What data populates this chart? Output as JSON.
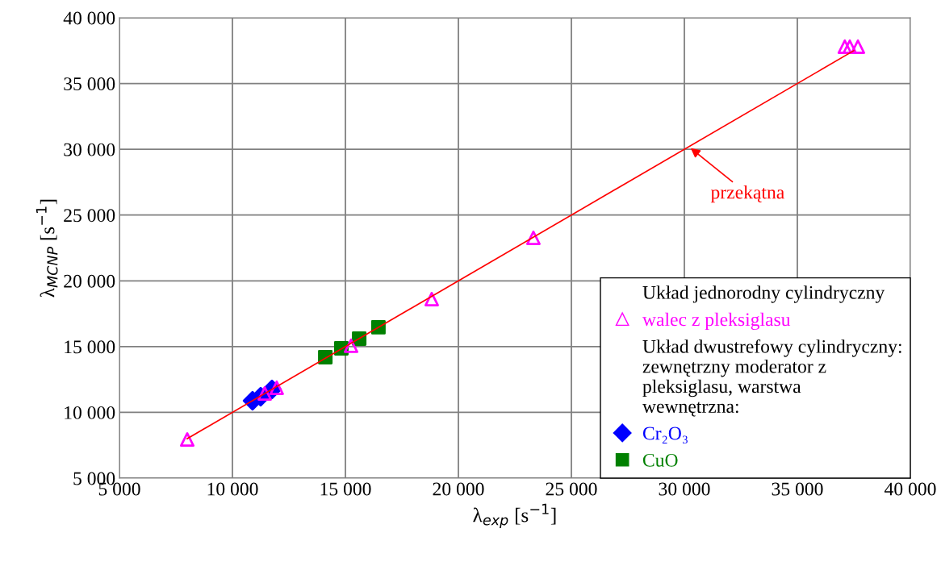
{
  "chart_data": {
    "type": "scatter",
    "xlabel": "λ$_{exp}$ [s$^{−1}$]",
    "ylabel": "λ$_{MCNP}$ [s$^{−1}$]",
    "xlim": [
      5000,
      40000
    ],
    "ylim": [
      5000,
      40000
    ],
    "xticks": [
      {
        "value": 5000,
        "label": "5 000"
      },
      {
        "value": 10000,
        "label": "10 000"
      },
      {
        "value": 15000,
        "label": "15 000"
      },
      {
        "value": 20000,
        "label": "20 000"
      },
      {
        "value": 25000,
        "label": "25 000"
      },
      {
        "value": 30000,
        "label": "30 000"
      },
      {
        "value": 35000,
        "label": "35 000"
      },
      {
        "value": 40000,
        "label": "40 000"
      }
    ],
    "yticks": [
      {
        "value": 5000,
        "label": "5 000"
      },
      {
        "value": 10000,
        "label": "10 000"
      },
      {
        "value": 15000,
        "label": "15 000"
      },
      {
        "value": 20000,
        "label": "20 000"
      },
      {
        "value": 25000,
        "label": "25 000"
      },
      {
        "value": 30000,
        "label": "30 000"
      },
      {
        "value": 35000,
        "label": "35 000"
      },
      {
        "value": 40000,
        "label": "40 000"
      }
    ],
    "grid": true,
    "legend": "bottom right",
    "series": [
      {
        "name": "walec z pleksiglasu",
        "color": "#ff00ff",
        "marker": "triangle",
        "x": [
          8000,
          11430,
          11960,
          15250,
          18820,
          23320,
          37100,
          37320,
          37680
        ],
        "values": [
          7940,
          11440,
          11870,
          15060,
          18610,
          23270,
          37800,
          37800,
          37800
        ]
      },
      {
        "name": "Cr₂O₃",
        "color": "#0000ff",
        "marker": "diamond",
        "x": [
          10890,
          11250,
          11750
        ],
        "values": [
          10890,
          11190,
          11740
        ]
      },
      {
        "name": "CuO",
        "color": "#008000",
        "marker": "square",
        "x": [
          14110,
          14820,
          15610,
          16460
        ],
        "values": [
          14200,
          14870,
          15610,
          16470
        ]
      },
      {
        "type": "line",
        "color": "#ff0000",
        "marker": "none",
        "x": [
          8000,
          37500
        ],
        "values": [
          8000,
          37500
        ]
      }
    ],
    "annotations": [
      {
        "text": "przekątna",
        "x": 30200,
        "y": 30200
      },
      "Układ jednorodny cylindryczny",
      "Układ dwustrefowy cylindryczny:\nzewnętrzny moderator z\npleksiglasu, warstwa\nwewnętrzna:"
    ]
  }
}
